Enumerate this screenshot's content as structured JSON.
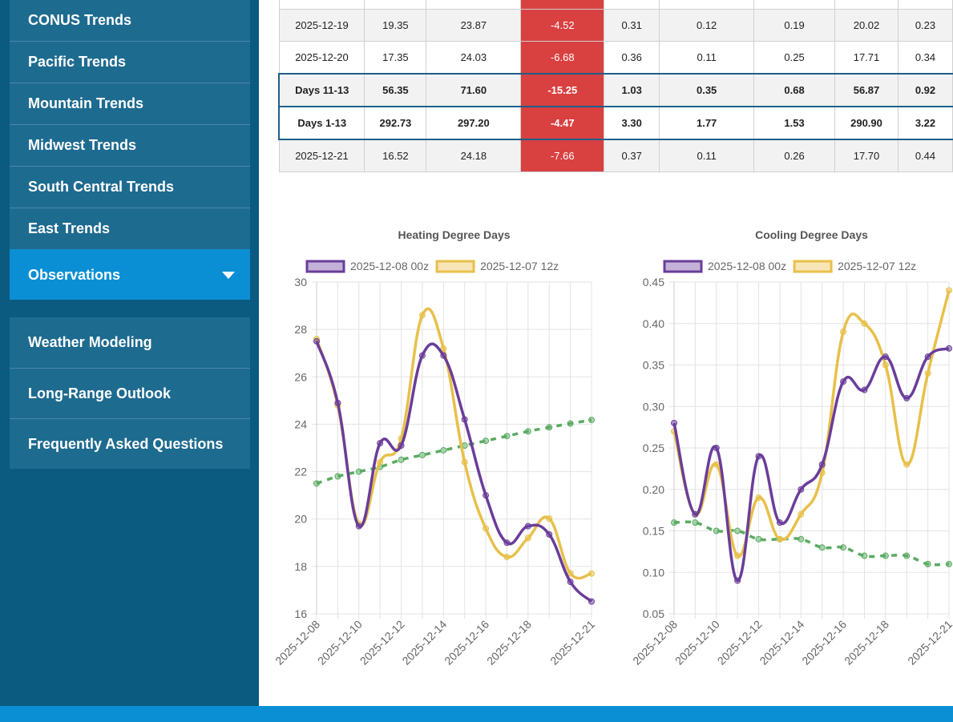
{
  "sidebar": {
    "items": [
      "CONUS Trends",
      "Pacific Trends",
      "Mountain Trends",
      "Midwest Trends",
      "South Central Trends",
      "East Trends",
      "Observations"
    ],
    "secondary": [
      "Weather Modeling",
      "Long-Range Outlook",
      "Frequently Asked Questions"
    ]
  },
  "table": {
    "rows": [
      [
        "2025-12-19",
        "19.35",
        "23.87",
        "-4.52",
        "0.31",
        "0.12",
        "0.19",
        "20.02",
        "0.23"
      ],
      [
        "2025-12-20",
        "17.35",
        "24.03",
        "-6.68",
        "0.36",
        "0.11",
        "0.25",
        "17.71",
        "0.34"
      ],
      [
        "Days 11-13",
        "56.35",
        "71.60",
        "-15.25",
        "1.03",
        "0.35",
        "0.68",
        "56.87",
        "0.92"
      ],
      [
        "Days 1-13",
        "292.73",
        "297.20",
        "-4.47",
        "3.30",
        "1.77",
        "1.53",
        "290.90",
        "3.22"
      ],
      [
        "2025-12-21",
        "16.52",
        "24.18",
        "-7.66",
        "0.37",
        "0.11",
        "0.26",
        "17.70",
        "0.44"
      ]
    ]
  },
  "chart_data": [
    {
      "type": "line",
      "title": "Heating Degree Days",
      "categories": [
        "2025-12-08",
        null,
        "2025-12-10",
        null,
        "2025-12-12",
        null,
        "2025-12-14",
        null,
        "2025-12-16",
        null,
        "2025-12-18",
        null,
        null,
        "2025-12-21"
      ],
      "series": [
        {
          "name": "2025-12-08 00z",
          "color": "#6a3d9a",
          "values": [
            27.5,
            24.9,
            19.7,
            23.2,
            23.1,
            26.9,
            26.9,
            24.2,
            21.0,
            19.0,
            19.7,
            19.35,
            17.35,
            16.52
          ]
        },
        {
          "name": "2025-12-07 12z",
          "color": "#e8c04a",
          "values": [
            27.6,
            24.8,
            19.8,
            22.4,
            23.4,
            28.6,
            27.2,
            22.4,
            19.6,
            18.4,
            19.2,
            20.02,
            17.71,
            17.7
          ]
        },
        {
          "color": "#5aab62",
          "dashed": true,
          "values": [
            21.5,
            21.8,
            22.0,
            22.2,
            22.5,
            22.7,
            22.9,
            23.1,
            23.3,
            23.5,
            23.7,
            23.87,
            24.03,
            24.18
          ]
        }
      ],
      "ylim": [
        16,
        30
      ],
      "yticks": [
        16,
        18,
        20,
        22,
        24,
        26,
        28,
        30
      ],
      "grid": true
    },
    {
      "type": "line",
      "title": "Cooling Degree Days",
      "categories": [
        "2025-12-08",
        null,
        "2025-12-10",
        null,
        "2025-12-12",
        null,
        "2025-12-14",
        null,
        "2025-12-16",
        null,
        "2025-12-18",
        null,
        null,
        "2025-12-21"
      ],
      "series": [
        {
          "name": "2025-12-08 00z",
          "color": "#6a3d9a",
          "values": [
            0.28,
            0.17,
            0.25,
            0.09,
            0.24,
            0.16,
            0.2,
            0.23,
            0.33,
            0.32,
            0.36,
            0.31,
            0.36,
            0.37
          ]
        },
        {
          "name": "2025-12-07 12z",
          "color": "#e8c04a",
          "values": [
            0.27,
            0.17,
            0.23,
            0.12,
            0.19,
            0.14,
            0.17,
            0.22,
            0.39,
            0.4,
            0.35,
            0.23,
            0.34,
            0.44
          ]
        },
        {
          "color": "#5aab62",
          "dashed": true,
          "values": [
            0.16,
            0.16,
            0.15,
            0.15,
            0.14,
            0.14,
            0.14,
            0.13,
            0.13,
            0.12,
            0.12,
            0.12,
            0.11,
            0.11
          ]
        }
      ],
      "ylim": [
        0.05,
        0.45
      ],
      "yticks": [
        0.05,
        {
          "value": 0.1,
          "label": "0.10"
        },
        0.15,
        {
          "value": 0.2,
          "label": "0.20"
        },
        0.25,
        {
          "value": 0.3,
          "label": "0.30"
        },
        0.35,
        {
          "value": 0.4,
          "label": "0.40"
        },
        0.45
      ],
      "grid": true
    }
  ]
}
